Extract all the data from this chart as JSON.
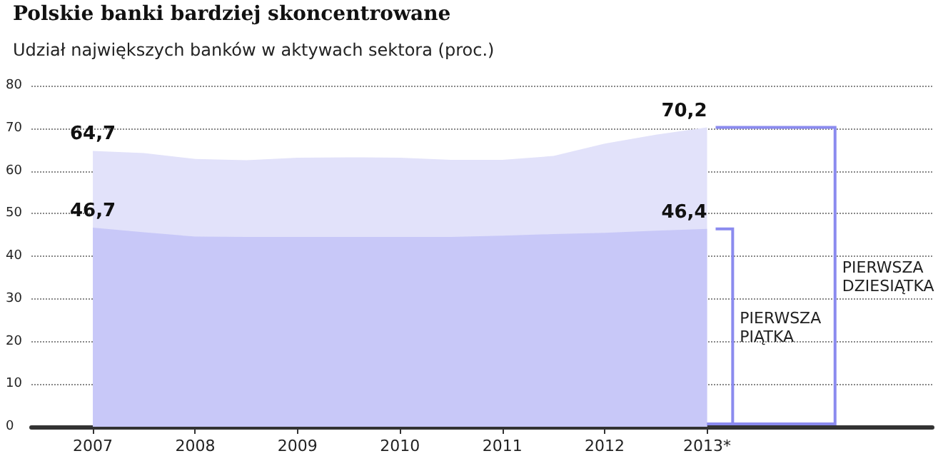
{
  "chart_data": {
    "type": "area",
    "title": "Polskie banki bardziej skoncentrowane",
    "subtitle": "Udział największych banków w aktywach sektora (proc.)",
    "x": [
      2007,
      2007.5,
      2008,
      2008.5,
      2009,
      2009.5,
      2010,
      2010.5,
      2011,
      2011.5,
      2012,
      2012.5,
      2013
    ],
    "series": [
      {
        "color": "#e2e2fa",
        "values": [
          64.7,
          64.2,
          62.8,
          62.5,
          63.1,
          63.2,
          63.1,
          62.6,
          62.6,
          63.5,
          66.4,
          68.5,
          70.2
        ],
        "value_labels": [
          "64,7",
          null,
          null,
          null,
          null,
          null,
          null,
          null,
          null,
          null,
          null,
          null,
          "70,2"
        ]
      },
      {
        "color": "#c8c8f8",
        "values": [
          46.7,
          45.6,
          44.6,
          44.5,
          44.5,
          44.5,
          44.5,
          44.5,
          44.8,
          45.2,
          45.5,
          46.0,
          46.4
        ],
        "value_labels": [
          "46,7",
          null,
          null,
          null,
          null,
          null,
          null,
          null,
          null,
          null,
          null,
          null,
          "46,4"
        ]
      }
    ],
    "xlim": [
      2006.4,
      2015.2
    ],
    "xticks": [
      2007,
      2008,
      2009,
      2010,
      2011,
      2012,
      {
        "value": 2013,
        "label": "2013*"
      }
    ],
    "ylim": [
      0,
      80
    ],
    "yticks": [
      0,
      10,
      20,
      30,
      40,
      50,
      60,
      70,
      80
    ],
    "annotations": [
      "PIERWSZA\nPIĄTKA",
      "PIERWSZA\nDZIESIĄTKA"
    ],
    "grid": "y"
  }
}
